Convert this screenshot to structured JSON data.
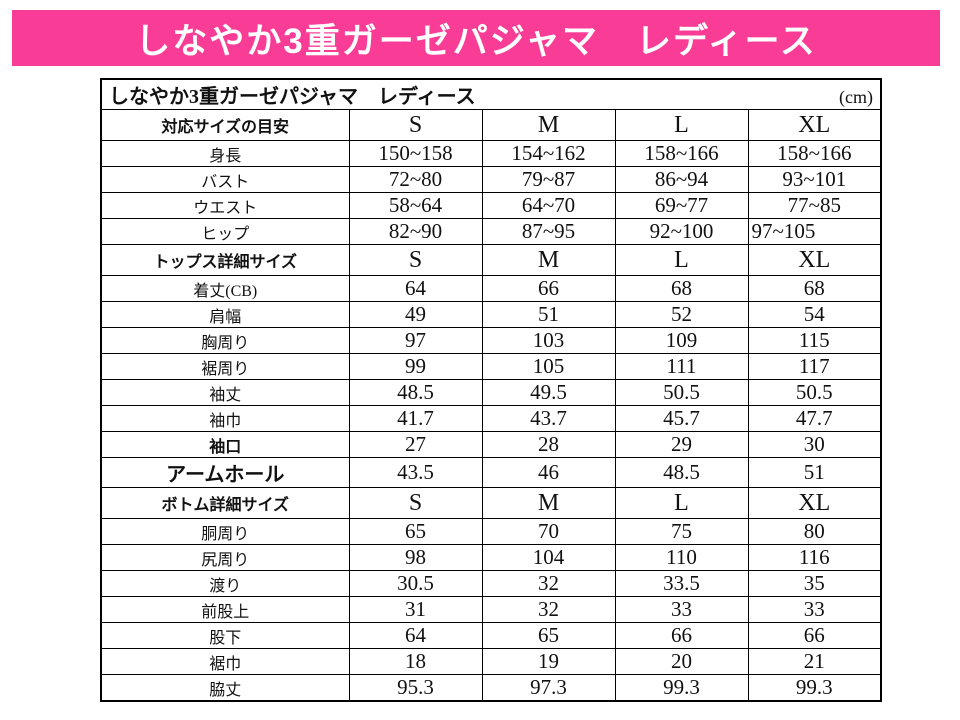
{
  "banner": {
    "text": "しなやか3重ガーゼパジャマ　レディース",
    "bg_color": "#f93c96",
    "text_color": "#ffffff"
  },
  "table": {
    "title": "しなやか3重ガーゼパジャマ　レディース",
    "unit": "(cm)",
    "border_color": "#000000",
    "sections": [
      {
        "header": "対応サイズの目安",
        "sizes": [
          "S",
          "M",
          "L",
          "XL"
        ],
        "rows": [
          {
            "label": "身長",
            "values": [
              "150~158",
              "154~162",
              "158~166",
              "158~166"
            ]
          },
          {
            "label": "バスト",
            "values": [
              "72~80",
              "79~87",
              "86~94",
              "93~101"
            ]
          },
          {
            "label": "ウエスト",
            "values": [
              "58~64",
              "64~70",
              "69~77",
              "77~85"
            ]
          },
          {
            "label": "ヒップ",
            "values": [
              "82~90",
              "87~95",
              "92~100",
              "97~105"
            ],
            "left_align_cols": [
              3
            ]
          }
        ]
      },
      {
        "header": "トップス詳細サイズ",
        "sizes": [
          "S",
          "M",
          "L",
          "XL"
        ],
        "rows": [
          {
            "label": "着丈(CB)",
            "values": [
              "64",
              "66",
              "68",
              "68"
            ]
          },
          {
            "label": "肩幅",
            "values": [
              "49",
              "51",
              "52",
              "54"
            ]
          },
          {
            "label": "胸周り",
            "values": [
              "97",
              "103",
              "109",
              "115"
            ]
          },
          {
            "label": "裾周り",
            "values": [
              "99",
              "105",
              "111",
              "117"
            ]
          },
          {
            "label": "袖丈",
            "values": [
              "48.5",
              "49.5",
              "50.5",
              "50.5"
            ]
          },
          {
            "label": "袖巾",
            "values": [
              "41.7",
              "43.7",
              "45.7",
              "47.7"
            ]
          },
          {
            "label": "袖口",
            "values": [
              "27",
              "28",
              "29",
              "30"
            ],
            "bold": true
          },
          {
            "label": "アームホール",
            "values": [
              "43.5",
              "46",
              "48.5",
              "51"
            ],
            "bold": true,
            "large": true
          }
        ]
      },
      {
        "header": "ボトム詳細サイズ",
        "sizes": [
          "S",
          "M",
          "L",
          "XL"
        ],
        "rows": [
          {
            "label": "胴周り",
            "values": [
              "65",
              "70",
              "75",
              "80"
            ]
          },
          {
            "label": "尻周り",
            "values": [
              "98",
              "104",
              "110",
              "116"
            ]
          },
          {
            "label": "渡り",
            "values": [
              "30.5",
              "32",
              "33.5",
              "35"
            ]
          },
          {
            "label": "前股上",
            "values": [
              "31",
              "32",
              "33",
              "33"
            ]
          },
          {
            "label": "股下",
            "values": [
              "64",
              "65",
              "66",
              "66"
            ]
          },
          {
            "label": "裾巾",
            "values": [
              "18",
              "19",
              "20",
              "21"
            ]
          },
          {
            "label": "脇丈",
            "values": [
              "95.3",
              "97.3",
              "99.3",
              "99.3"
            ]
          }
        ]
      }
    ]
  }
}
